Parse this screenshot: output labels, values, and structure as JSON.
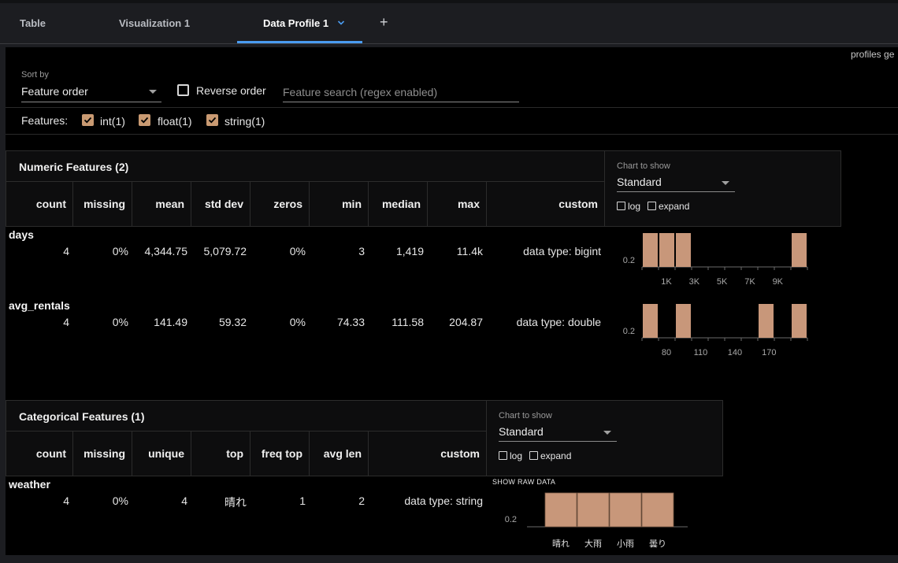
{
  "tabs": [
    {
      "label": "Table"
    },
    {
      "label": "Visualization 1"
    },
    {
      "label": "Data Profile 1"
    }
  ],
  "profiles_text": "profiles ge",
  "controls": {
    "sort_by_label": "Sort by",
    "sort_value": "Feature order",
    "reverse_label": "Reverse order",
    "reverse_checked": false,
    "search_placeholder": "Feature search (regex enabled)",
    "search_value": ""
  },
  "features": {
    "label": "Features:",
    "items": [
      {
        "label": "int(1)",
        "checked": true
      },
      {
        "label": "float(1)",
        "checked": true
      },
      {
        "label": "string(1)",
        "checked": true
      }
    ]
  },
  "numeric": {
    "title": "Numeric Features (2)",
    "headers": [
      "count",
      "missing",
      "mean",
      "std dev",
      "zeros",
      "min",
      "median",
      "max",
      "custom"
    ],
    "chart_label": "Chart to show",
    "chart_value": "Standard",
    "log_label": "log",
    "expand_label": "expand",
    "rows": [
      {
        "name": "days",
        "values": [
          "4",
          "0%",
          "4,344.75",
          "5,079.72",
          "0%",
          "3",
          "1,419",
          "11.4k",
          "data type: bigint"
        ],
        "hist": {
          "ytick": "0.2",
          "xticks": [
            "1K",
            "3K",
            "5K",
            "7K",
            "9K"
          ],
          "bars": [
            0.25,
            0.25,
            0.25,
            0,
            0,
            0,
            0,
            0,
            0,
            0.25
          ]
        }
      },
      {
        "name": "avg_rentals",
        "values": [
          "4",
          "0%",
          "141.49",
          "59.32",
          "0%",
          "74.33",
          "111.58",
          "204.87",
          "data type: double"
        ],
        "hist": {
          "ytick": "0.2",
          "xticks": [
            "80",
            "110",
            "140",
            "170"
          ],
          "bars": [
            0.25,
            0,
            0.25,
            0,
            0,
            0,
            0,
            0.25,
            0,
            0.25
          ]
        }
      }
    ]
  },
  "categorical": {
    "title": "Categorical Features (1)",
    "headers": [
      "count",
      "missing",
      "unique",
      "top",
      "freq top",
      "avg len",
      "custom"
    ],
    "chart_label": "Chart to show",
    "chart_value": "Standard",
    "log_label": "log",
    "expand_label": "expand",
    "rows": [
      {
        "name": "weather",
        "values": [
          "4",
          "0%",
          "4",
          "晴れ",
          "1",
          "2",
          "data type: string"
        ],
        "show_raw": "SHOW RAW DATA",
        "hist": {
          "ytick": "0.2",
          "categories": [
            "晴れ",
            "大雨",
            "小雨",
            "曇り"
          ],
          "bars": [
            0.25,
            0.25,
            0.25,
            0.25
          ]
        }
      }
    ]
  },
  "colors": {
    "accent": "#4a9cf0",
    "bar_fill": "#c8977a",
    "checkbox_fill": "#c99a72"
  }
}
